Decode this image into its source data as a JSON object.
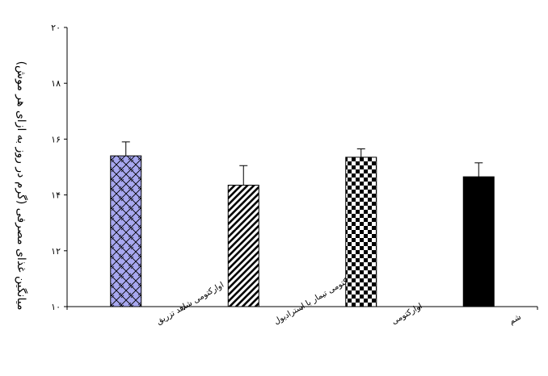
{
  "chart_data": {
    "type": "bar",
    "title": "",
    "xlabel": "",
    "ylabel": "میانگین غذای مصرفی (گرم در روز به ازای هر موش)",
    "ylim": [
      10,
      20
    ],
    "yticks": [
      10,
      12,
      14,
      16,
      18,
      20
    ],
    "ytick_labels": [
      "۱۰",
      "۱۲",
      "۱۴",
      "۱۶",
      "۱۸",
      "۲۰"
    ],
    "grid": false,
    "categories": [
      "اوارکتومی شاهد تزریق",
      "اوارکتومی تیمار با استرادیول",
      "اوارکتومی",
      "شم"
    ],
    "values": [
      15.4,
      14.35,
      15.35,
      14.65
    ],
    "errors": [
      0.5,
      0.7,
      0.3,
      0.5
    ],
    "bar_styles": [
      {
        "pattern": "lattice",
        "fill": "#a8a8f0",
        "stroke": "#000000"
      },
      {
        "pattern": "diagonal-stripes",
        "fill": "#ffffff",
        "stroke": "#000000"
      },
      {
        "pattern": "checkerboard",
        "fill": "#ffffff",
        "stroke": "#000000"
      },
      {
        "pattern": "solid",
        "fill": "#000000",
        "stroke": "#000000"
      }
    ]
  }
}
